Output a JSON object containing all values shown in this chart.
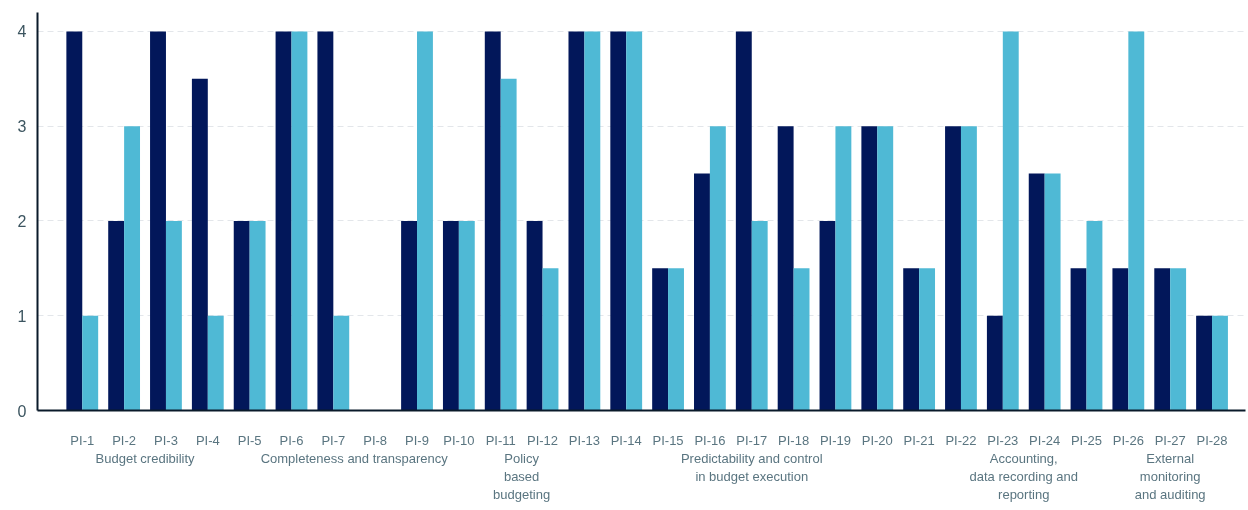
{
  "chart_data": {
    "type": "bar",
    "categories": [
      "PI-1",
      "PI-2",
      "PI-3",
      "PI-4",
      "PI-5",
      "PI-6",
      "PI-7",
      "PI-8",
      "PI-9",
      "PI-10",
      "PI-11",
      "PI-12",
      "PI-13",
      "PI-14",
      "PI-15",
      "PI-16",
      "PI-17",
      "PI-18",
      "PI-19",
      "PI-20",
      "PI-21",
      "PI-22",
      "PI-23",
      "PI-24",
      "PI-25",
      "PI-26",
      "PI-27",
      "PI-28"
    ],
    "series": [
      {
        "color": "#02175a",
        "values": [
          4,
          2,
          4,
          3.5,
          2,
          4,
          4,
          null,
          2,
          2,
          4,
          2,
          4,
          4,
          1.5,
          2.5,
          4,
          3,
          2,
          3,
          1.5,
          3,
          1,
          2.5,
          1.5,
          1.5,
          1.5,
          1
        ]
      },
      {
        "color": "#4fb9d5",
        "values": [
          1,
          3,
          2,
          1,
          2,
          4,
          1,
          null,
          4,
          2,
          3.5,
          1.5,
          4,
          4,
          1.5,
          3,
          2,
          1.5,
          3,
          3,
          1.5,
          3,
          4,
          2.5,
          2,
          4,
          1.5,
          1
        ]
      }
    ],
    "ylim": [
      0,
      4.2
    ],
    "yticks": [
      0,
      1,
      2,
      3,
      4
    ],
    "grid": "y",
    "annotations": [
      "Budget credibility",
      "Completeness and transparency",
      "Policy\nbased\nbudgeting",
      "Predictability and control\nin budget execution",
      "Accounting,\ndata recording and\nreporting",
      "External\nmonitoring\nand auditing"
    ]
  }
}
